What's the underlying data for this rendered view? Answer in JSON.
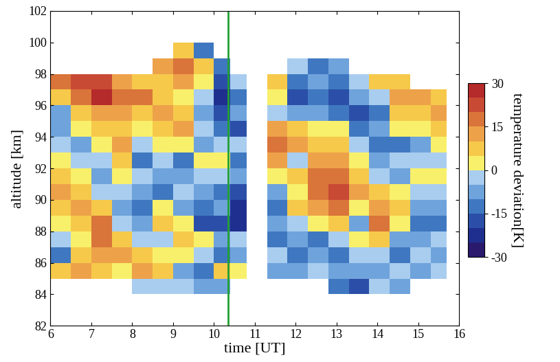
{
  "chart_data": {
    "type": "heatmap",
    "xlabel": "time [UT]",
    "ylabel": "altitude [km]",
    "xlim": [
      6,
      16
    ],
    "ylim": [
      82,
      102
    ],
    "xticks": [
      6,
      7,
      8,
      9,
      10,
      11,
      12,
      13,
      14,
      15,
      16
    ],
    "yticks": [
      82,
      84,
      86,
      88,
      90,
      92,
      94,
      96,
      98,
      100,
      102
    ],
    "x_edges": [
      6.0,
      6.5,
      7.0,
      7.5,
      8.0,
      8.5,
      9.0,
      9.5,
      10.0,
      10.4,
      10.8,
      11.3,
      11.8,
      12.3,
      12.8,
      13.3,
      13.8,
      14.3,
      14.8,
      15.3,
      15.7
    ],
    "y_edges": [
      84,
      85,
      86,
      87,
      88,
      89,
      90,
      91,
      92,
      93,
      94,
      95,
      96,
      97,
      98,
      99,
      100
    ],
    "cells": [
      [
        null,
        null,
        null,
        null,
        -5,
        -5,
        -5,
        -10,
        -10,
        null,
        null,
        null,
        null,
        null,
        -15,
        -20,
        -5,
        -10,
        null,
        null
      ],
      [
        5,
        10,
        5,
        0,
        10,
        5,
        -10,
        -15,
        5,
        0,
        null,
        -10,
        -10,
        -5,
        -10,
        -10,
        -10,
        -5,
        -10,
        -5
      ],
      [
        -15,
        5,
        10,
        10,
        5,
        0,
        0,
        -5,
        -15,
        -10,
        null,
        -5,
        -15,
        -10,
        -15,
        -5,
        -5,
        -15,
        -5,
        -10
      ],
      [
        -5,
        0,
        15,
        5,
        -5,
        -5,
        5,
        0,
        -10,
        -5,
        null,
        -15,
        -10,
        -15,
        -5,
        0,
        5,
        -10,
        -10,
        -5
      ],
      [
        0,
        5,
        15,
        -5,
        -10,
        5,
        0,
        -20,
        -20,
        -25,
        null,
        -10,
        -5,
        0,
        5,
        -10,
        15,
        0,
        -15,
        -15
      ],
      [
        8,
        10,
        5,
        -10,
        -15,
        0,
        -10,
        -15,
        -10,
        -25,
        null,
        -15,
        5,
        10,
        15,
        0,
        10,
        5,
        -10,
        -10
      ],
      [
        10,
        8,
        -5,
        -5,
        -10,
        -15,
        -5,
        -10,
        -15,
        -20,
        null,
        -10,
        0,
        15,
        20,
        10,
        5,
        0,
        -5,
        -5
      ],
      [
        5,
        0,
        -10,
        0,
        -5,
        -10,
        -10,
        -5,
        -5,
        -10,
        null,
        0,
        5,
        15,
        15,
        5,
        -5,
        -10,
        0,
        0
      ],
      [
        0,
        -5,
        -5,
        5,
        -15,
        -5,
        -15,
        0,
        0,
        -15,
        null,
        10,
        -5,
        10,
        10,
        0,
        -10,
        -5,
        -5,
        -5
      ],
      [
        -5,
        -10,
        0,
        10,
        -5,
        0,
        0,
        -10,
        -5,
        -5,
        null,
        15,
        10,
        5,
        5,
        -5,
        -15,
        -15,
        -10,
        0
      ],
      [
        -8,
        0,
        5,
        5,
        0,
        5,
        10,
        -5,
        -15,
        -20,
        null,
        10,
        5,
        0,
        0,
        -15,
        -10,
        0,
        0,
        5
      ],
      [
        -10,
        5,
        10,
        10,
        5,
        10,
        5,
        -10,
        -20,
        -10,
        null,
        -5,
        -10,
        -10,
        -15,
        -20,
        -15,
        5,
        5,
        10
      ],
      [
        5,
        15,
        25,
        15,
        15,
        5,
        0,
        -5,
        -25,
        -15,
        null,
        0,
        -20,
        -15,
        -20,
        -10,
        -5,
        10,
        10,
        5
      ],
      [
        15,
        20,
        20,
        10,
        5,
        5,
        10,
        0,
        -20,
        -5,
        null,
        5,
        -15,
        -10,
        -15,
        -5,
        5,
        5,
        null,
        null
      ],
      [
        null,
        null,
        null,
        null,
        null,
        10,
        15,
        5,
        -15,
        null,
        null,
        null,
        -5,
        -15,
        -10,
        null,
        null,
        null,
        null,
        null
      ],
      [
        null,
        null,
        null,
        null,
        null,
        null,
        5,
        -15,
        null,
        null,
        null,
        null,
        null,
        null,
        null,
        null,
        null,
        null,
        null,
        null
      ]
    ],
    "colorbar": {
      "label": "temperature deviation[K]",
      "range": [
        -30,
        30
      ],
      "ticks": [
        -30,
        -15,
        0,
        15,
        30
      ],
      "levels": [
        -30,
        -25,
        -20,
        -15,
        -10,
        -5,
        0,
        5,
        10,
        15,
        20,
        25,
        30
      ]
    },
    "vertical_line_x": 10.35
  }
}
